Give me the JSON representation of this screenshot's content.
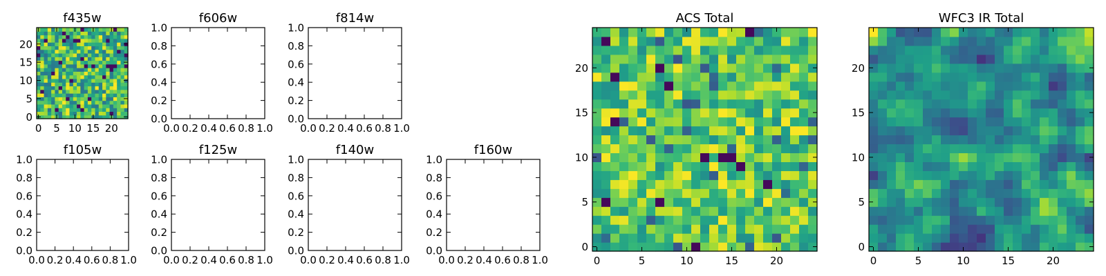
{
  "chart_data": [
    {
      "type": "heatmap",
      "title": "f435w",
      "xticks": [
        "0",
        "5",
        "10",
        "15",
        "20"
      ],
      "yticks": [
        "0",
        "5",
        "10",
        "15",
        "20"
      ],
      "xlim": [
        -0.5,
        24.5
      ],
      "ylim": [
        -0.5,
        24.5
      ],
      "grid_size": 25,
      "colormap": "viridis",
      "image": "noise",
      "seed": 11
    },
    {
      "type": "empty",
      "title": "f606w",
      "xticks": [
        "0.0",
        "0.2",
        "0.4",
        "0.6",
        "0.8",
        "1.0"
      ],
      "yticks": [
        "0.0",
        "0.2",
        "0.4",
        "0.6",
        "0.8",
        "1.0"
      ],
      "xlim": [
        0,
        1
      ],
      "ylim": [
        0,
        1
      ]
    },
    {
      "type": "empty",
      "title": "f814w",
      "xticks": [
        "0.0",
        "0.2",
        "0.4",
        "0.6",
        "0.8",
        "1.0"
      ],
      "yticks": [
        "0.0",
        "0.2",
        "0.4",
        "0.6",
        "0.8",
        "1.0"
      ],
      "xlim": [
        0,
        1
      ],
      "ylim": [
        0,
        1
      ]
    },
    {
      "type": "empty",
      "title": "f105w",
      "xticks": [
        "0.0",
        "0.2",
        "0.4",
        "0.6",
        "0.8",
        "1.0"
      ],
      "yticks": [
        "0.0",
        "0.2",
        "0.4",
        "0.6",
        "0.8",
        "1.0"
      ],
      "xlim": [
        0,
        1
      ],
      "ylim": [
        0,
        1
      ]
    },
    {
      "type": "empty",
      "title": "f125w",
      "xticks": [
        "0.0",
        "0.2",
        "0.4",
        "0.6",
        "0.8",
        "1.0"
      ],
      "yticks": [
        "0.0",
        "0.2",
        "0.4",
        "0.6",
        "0.8",
        "1.0"
      ],
      "xlim": [
        0,
        1
      ],
      "ylim": [
        0,
        1
      ]
    },
    {
      "type": "empty",
      "title": "f140w",
      "xticks": [
        "0.0",
        "0.2",
        "0.4",
        "0.6",
        "0.8",
        "1.0"
      ],
      "yticks": [
        "0.0",
        "0.2",
        "0.4",
        "0.6",
        "0.8",
        "1.0"
      ],
      "xlim": [
        0,
        1
      ],
      "ylim": [
        0,
        1
      ]
    },
    {
      "type": "empty",
      "title": "f160w",
      "xticks": [
        "0.0",
        "0.2",
        "0.4",
        "0.6",
        "0.8",
        "1.0"
      ],
      "yticks": [
        "0.0",
        "0.2",
        "0.4",
        "0.6",
        "0.8",
        "1.0"
      ],
      "xlim": [
        0,
        1
      ],
      "ylim": [
        0,
        1
      ]
    },
    {
      "type": "heatmap",
      "title": "ACS Total",
      "xticks": [
        "0",
        "5",
        "10",
        "15",
        "20"
      ],
      "yticks": [
        "0",
        "5",
        "10",
        "15",
        "20"
      ],
      "xlim": [
        -0.5,
        24.5
      ],
      "ylim": [
        -0.5,
        24.5
      ],
      "grid_size": 25,
      "colormap": "viridis",
      "image": "bright_noise",
      "seed": 29
    },
    {
      "type": "heatmap",
      "title": "WFC3 IR Total",
      "xticks": [
        "0",
        "5",
        "10",
        "15",
        "20"
      ],
      "yticks": [
        "0",
        "5",
        "10",
        "15",
        "20"
      ],
      "xlim": [
        -0.5,
        24.5
      ],
      "ylim": [
        -0.5,
        24.5
      ],
      "grid_size": 25,
      "colormap": "viridis",
      "image": "smooth_noise",
      "seed": 47
    }
  ]
}
